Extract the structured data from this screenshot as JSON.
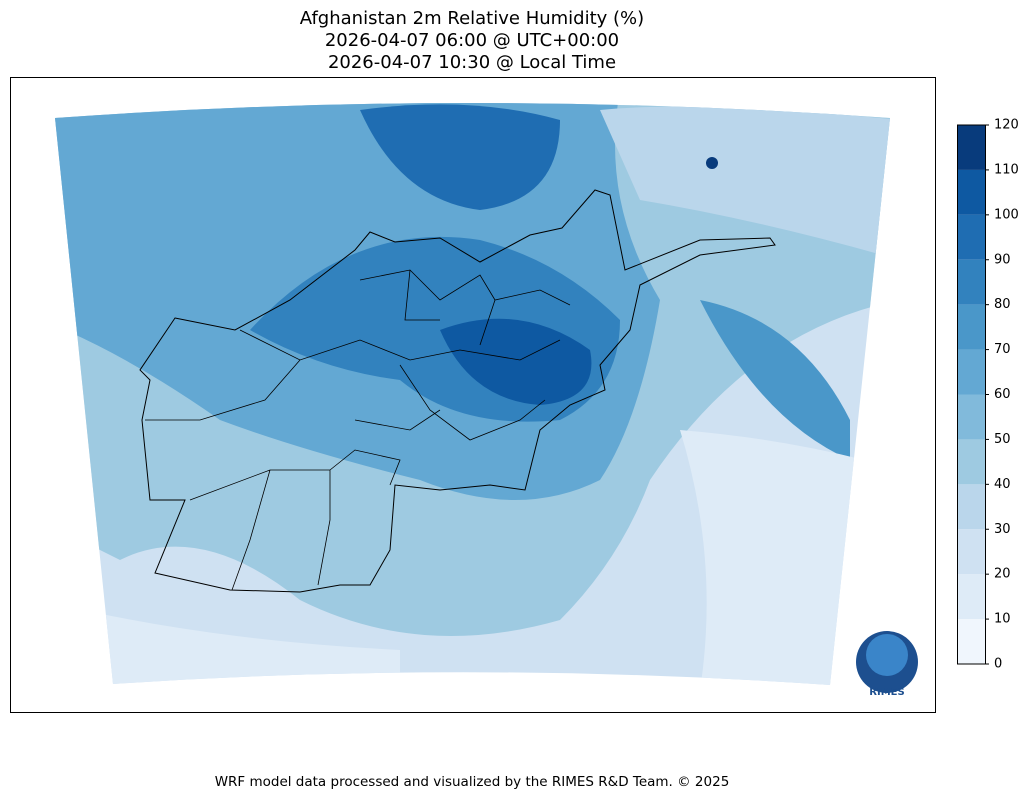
{
  "title": [
    "Afghanistan 2m Relative Humidity (%)",
    "2026-04-07 06:00 @ UTC+00:00",
    "2026-04-07 10:30 @ Local Time"
  ],
  "colorbar": {
    "lim": [
      0,
      120
    ],
    "ticks": [
      0,
      10,
      20,
      30,
      40,
      50,
      60,
      70,
      80,
      90,
      100,
      110,
      120
    ],
    "colors": [
      "#f0f6fd",
      "#deebf7",
      "#cfe1f2",
      "#bad6eb",
      "#9ecae1",
      "#81badb",
      "#63a8d3",
      "#4a97c9",
      "#3282be",
      "#1f6db2",
      "#0e59a2",
      "#083b7c"
    ]
  },
  "logo": "RIMES",
  "footer": "WRF model data processed and visualized by the RIMES R&D Team. © 2025"
}
